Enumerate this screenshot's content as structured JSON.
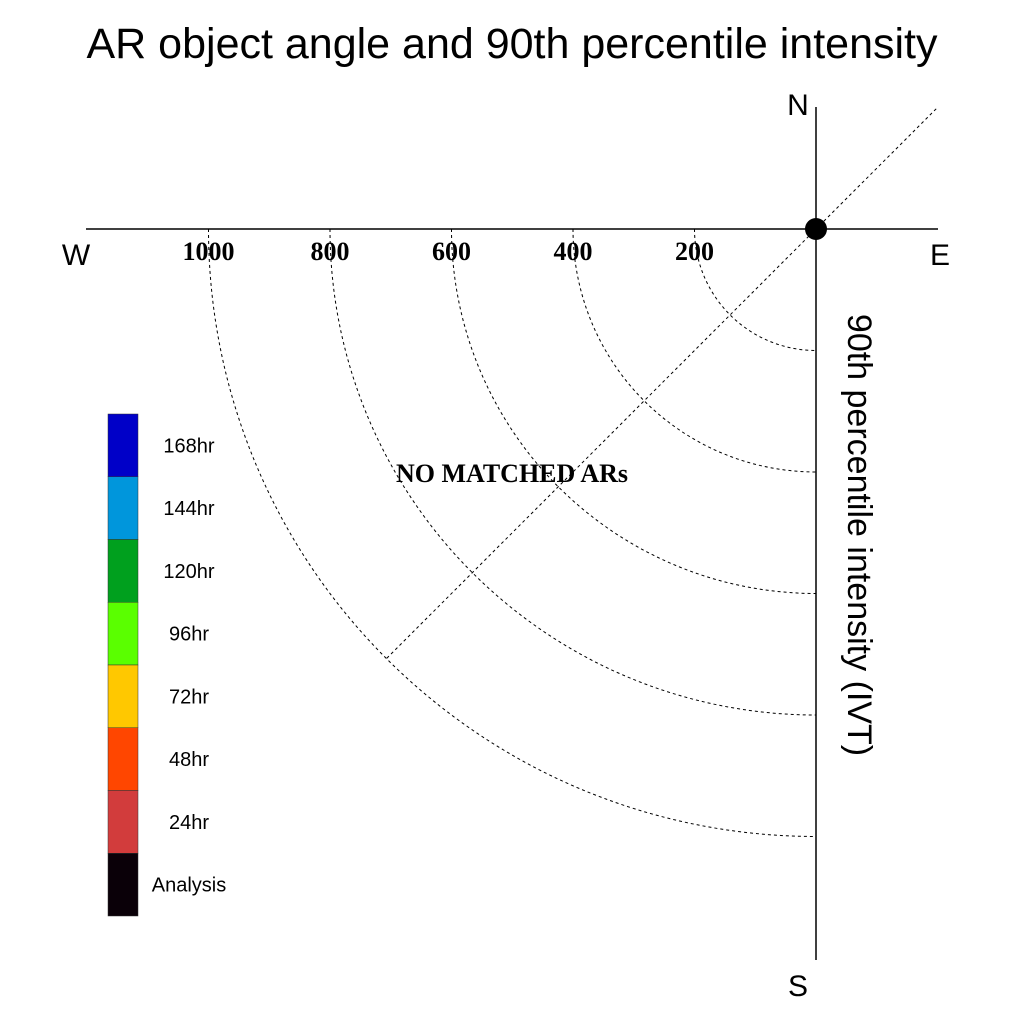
{
  "chart_data": {
    "type": "scatter",
    "projection": "polar-quadrant",
    "title": "AR object angle and 90th percentile intensity",
    "directions": {
      "north": "N",
      "south": "S",
      "west": "W",
      "east": "E"
    },
    "radial_axis": {
      "label": "90th percentile intensity (IVT)",
      "ticks": [
        200,
        400,
        600,
        800,
        1000
      ],
      "range": [
        0,
        1000
      ]
    },
    "diagonal_reference_deg": 45,
    "annotation": "NO MATCHED ARs",
    "points": [],
    "legend": {
      "placement": "left",
      "items": [
        {
          "label": "168hr",
          "color": "#0000c8"
        },
        {
          "label": "144hr",
          "color": "#0096dc"
        },
        {
          "label": "120hr",
          "color": "#00a01e"
        },
        {
          "label": "96hr",
          "color": "#5aff00"
        },
        {
          "label": "72hr",
          "color": "#ffc800"
        },
        {
          "label": "48hr",
          "color": "#ff4600"
        },
        {
          "label": "24hr",
          "color": "#d23c3c"
        },
        {
          "label": "Analysis",
          "color": "#0a0008"
        }
      ]
    },
    "origin_marker_color": "#000000"
  }
}
